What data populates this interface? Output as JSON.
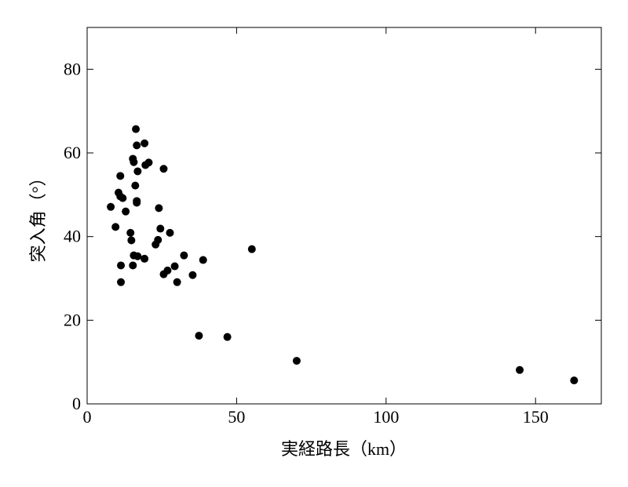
{
  "chart_data": {
    "type": "scatter",
    "x_label": "実経路長（km）",
    "y_label": "突入角（°）",
    "xlim": [
      0,
      172
    ],
    "ylim": [
      0,
      90
    ],
    "xticks": [
      0,
      50,
      100,
      150
    ],
    "yticks": [
      0,
      20,
      40,
      60,
      80
    ],
    "color": "#000000",
    "series": [
      {
        "x": [
          7.9,
          9.5,
          10.5,
          11.1,
          11.1,
          11.9,
          11.3,
          11.3,
          12.9,
          14.5,
          14.8,
          15.3,
          15.6,
          15.3,
          15.6,
          16.3,
          16.6,
          16.1,
          16.6,
          16.6,
          16.9,
          16.9,
          19.2,
          19.5,
          20.6,
          19.2,
          24.0,
          24.5,
          22.9,
          23.7,
          25.6,
          25.6,
          26.9,
          27.7,
          29.3,
          30.1,
          32.4,
          35.3,
          38.8,
          37.4,
          46.9,
          55.1,
          70.1,
          144.7,
          162.9
        ],
        "values": [
          47.1,
          42.3,
          50.5,
          54.5,
          49.6,
          49.2,
          33.1,
          29.1,
          46.0,
          40.9,
          39.1,
          33.1,
          35.5,
          58.6,
          57.8,
          65.7,
          61.8,
          52.2,
          48.5,
          48.1,
          55.6,
          35.3,
          62.3,
          57.1,
          57.7,
          34.7,
          46.8,
          41.9,
          38.1,
          39.2,
          56.2,
          31.0,
          31.9,
          40.9,
          32.9,
          29.1,
          35.5,
          30.8,
          34.4,
          16.3,
          16.0,
          37.0,
          10.3,
          8.1,
          5.6
        ]
      }
    ]
  }
}
